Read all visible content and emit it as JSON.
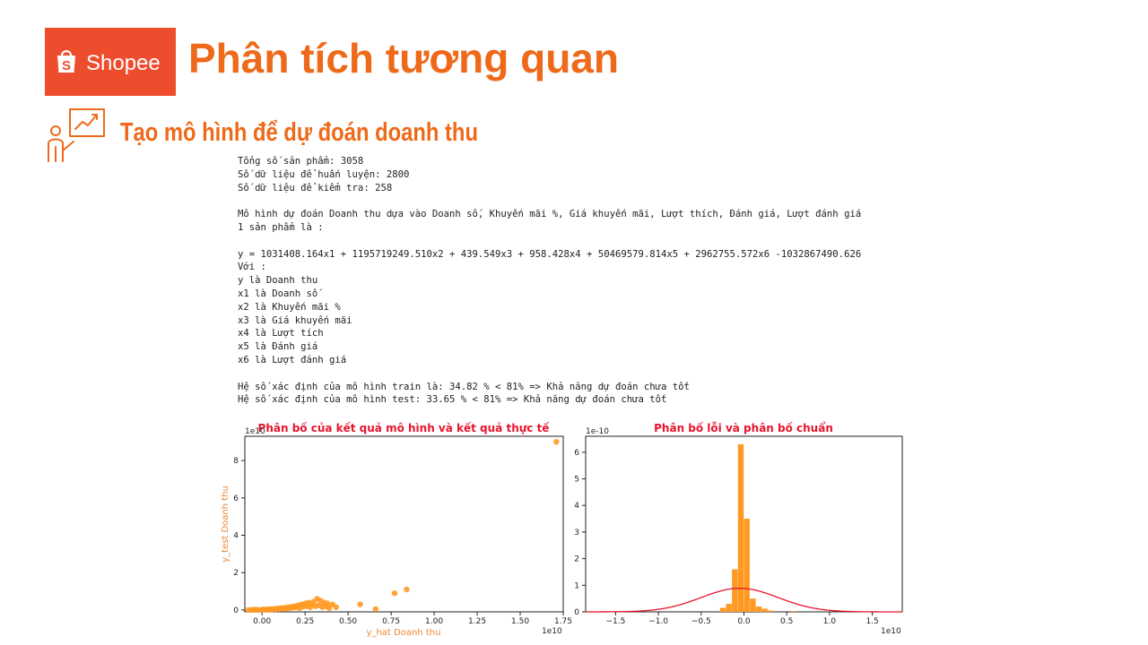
{
  "header": {
    "logo_text": "Shopee",
    "title": "Phân tích tương quan",
    "section_title": "Tạo mô hình để dự đoán doanh thu",
    "brand_color": "#ee4d2d",
    "title_color": "#ee6a1a"
  },
  "console": {
    "lines": [
      "Tổng số sản phẩm: 3058",
      "Số dữ liệu để huấn luyện: 2800",
      "Số dữ liệu để kiểm tra: 258",
      "",
      "Mô hình dự đoán Doanh thu dựa vào Doanh số, Khuyến mãi %, Giá khuyến mãi, Lượt thích, Đánh giá, Lượt đánh giá",
      "1 sản phẩm là :",
      "",
      "y = 1031408.164x1 + 1195719249.510x2 + 439.549x3 + 958.428x4 + 50469579.814x5 + 2962755.572x6 -1032867490.626",
      "Với :",
      "y là Doanh thu",
      "x1 là Doanh số",
      "x2 là Khuyến mãi %",
      "x3 là Giá khuyến mãi",
      "x4 là Lượt tích",
      "x5 là Đánh giá",
      "x6 là Lượt đánh giá",
      "",
      "Hệ số xác định của mô hình train là: 34.82 % < 81% => Khả năng dự đoán chưa tốt",
      "Hệ số xác định của mô hình test: 33.65 % < 81% => Khả năng dự đoán chưa tốt"
    ]
  },
  "chart_data": [
    {
      "type": "scatter",
      "title": "Phân bố của kết quả mô hình và kết quả thực tế",
      "xlabel": "y_hat Doanh thu",
      "ylabel": "y_test Doanh thu",
      "x_scale_label": "1e10",
      "y_scale_label": "1e10",
      "xlim": [
        -0.1,
        1.75
      ],
      "ylim": [
        -0.1,
        9.3
      ],
      "xticks": [
        0.0,
        0.25,
        0.5,
        0.75,
        1.0,
        1.25,
        1.5,
        1.75
      ],
      "xtick_labels": [
        "0.00",
        "0.25",
        "0.50",
        "0.75",
        "1.00",
        "1.25",
        "1.50",
        "1.75"
      ],
      "yticks": [
        0,
        2,
        4,
        6,
        8
      ],
      "ytick_labels": [
        "0",
        "2",
        "4",
        "6",
        "8"
      ],
      "color": "#ff9922",
      "points": [
        [
          -0.08,
          0.0
        ],
        [
          -0.06,
          0.01
        ],
        [
          -0.05,
          0.0
        ],
        [
          -0.04,
          0.02
        ],
        [
          -0.03,
          0.01
        ],
        [
          -0.02,
          0.0
        ],
        [
          0.0,
          0.02
        ],
        [
          0.01,
          0.03
        ],
        [
          0.02,
          0.01
        ],
        [
          0.03,
          0.04
        ],
        [
          0.04,
          0.02
        ],
        [
          0.05,
          0.05
        ],
        [
          0.06,
          0.03
        ],
        [
          0.07,
          0.06
        ],
        [
          0.08,
          0.04
        ],
        [
          0.09,
          0.08
        ],
        [
          0.1,
          0.05
        ],
        [
          0.11,
          0.1
        ],
        [
          0.12,
          0.06
        ],
        [
          0.13,
          0.12
        ],
        [
          0.14,
          0.08
        ],
        [
          0.15,
          0.15
        ],
        [
          0.16,
          0.1
        ],
        [
          0.17,
          0.18
        ],
        [
          0.18,
          0.12
        ],
        [
          0.19,
          0.2
        ],
        [
          0.2,
          0.14
        ],
        [
          0.21,
          0.25
        ],
        [
          0.22,
          0.1
        ],
        [
          0.23,
          0.3
        ],
        [
          0.24,
          0.18
        ],
        [
          0.25,
          0.35
        ],
        [
          0.26,
          0.2
        ],
        [
          0.27,
          0.4
        ],
        [
          0.28,
          0.15
        ],
        [
          0.29,
          0.3
        ],
        [
          0.3,
          0.45
        ],
        [
          0.31,
          0.2
        ],
        [
          0.32,
          0.6
        ],
        [
          0.33,
          0.25
        ],
        [
          0.34,
          0.5
        ],
        [
          0.35,
          0.15
        ],
        [
          0.36,
          0.4
        ],
        [
          0.37,
          0.2
        ],
        [
          0.38,
          0.35
        ],
        [
          0.39,
          0.1
        ],
        [
          0.41,
          0.3
        ],
        [
          0.43,
          0.15
        ],
        [
          0.57,
          0.3
        ],
        [
          0.66,
          0.05
        ],
        [
          0.77,
          0.9
        ],
        [
          0.84,
          1.1
        ],
        [
          1.71,
          9.0
        ]
      ]
    },
    {
      "type": "bar",
      "subtype": "histogram_with_normal_curve",
      "title": "Phân bố lỗi và phân bố chuẩn",
      "y_scale_label": "1e-10",
      "x_scale_label": "1e10",
      "xlim": [
        -1.85,
        1.85
      ],
      "ylim": [
        0,
        6.6
      ],
      "xticks": [
        -1.5,
        -1.0,
        -0.5,
        0.0,
        0.5,
        1.0,
        1.5
      ],
      "xtick_labels": [
        "−1.5",
        "−1.0",
        "−0.5",
        "0.0",
        "0.5",
        "1.0",
        "1.5"
      ],
      "yticks": [
        0,
        1,
        2,
        3,
        4,
        5,
        6
      ],
      "ytick_labels": [
        "0",
        "1",
        "2",
        "3",
        "4",
        "5",
        "6"
      ],
      "bar_color": "#ff9922",
      "curve_color": "#e8142d",
      "bin_width": 0.067,
      "bins": [
        [
          -0.28,
          0.15
        ],
        [
          -0.21,
          0.3
        ],
        [
          -0.14,
          1.6
        ],
        [
          -0.07,
          6.3
        ],
        [
          0.0,
          3.5
        ],
        [
          0.07,
          0.5
        ],
        [
          0.14,
          0.2
        ],
        [
          0.21,
          0.12
        ],
        [
          0.28,
          0.05
        ],
        [
          0.55,
          0.03
        ]
      ],
      "normal_mean": -0.05,
      "normal_std": 0.45
    }
  ]
}
